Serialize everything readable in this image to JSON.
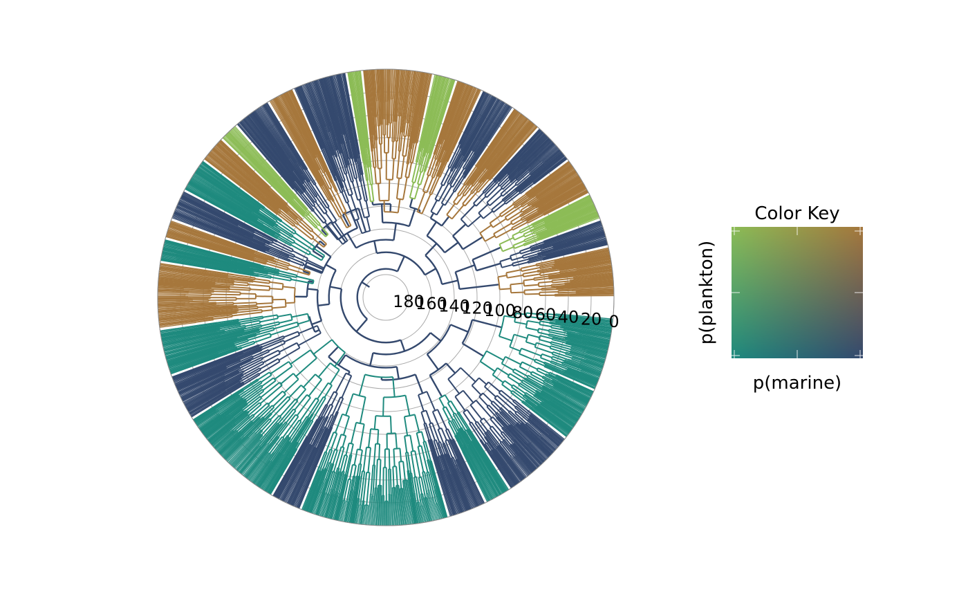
{
  "chart_data": {
    "type": "circular-phylogeny",
    "title": "",
    "radial_axis": {
      "ticks": [
        180,
        160,
        140,
        120,
        100,
        80,
        60,
        40,
        20,
        0
      ],
      "range": [
        0,
        183
      ],
      "grid": true
    },
    "color_key": {
      "title": "Color Key",
      "xlabel": "p(marine)",
      "ylabel": "p(plankton)",
      "corner_colors": {
        "low_marine_low_plankton": "#1e8a7e",
        "high_marine_low_plankton": "#34496e",
        "low_marine_high_plankton": "#8cbc56",
        "high_marine_high_plankton": "#a6773c"
      }
    },
    "clades": [
      {
        "start_deg": 0,
        "end_deg": 13,
        "color": "#a6773c",
        "depth_age": 100
      },
      {
        "start_deg": 13,
        "end_deg": 20,
        "color": "#34496e",
        "depth_age": 95
      },
      {
        "start_deg": 20,
        "end_deg": 27,
        "color": "#8cbc56",
        "depth_age": 90
      },
      {
        "start_deg": 27,
        "end_deg": 37,
        "color": "#a6773c",
        "depth_age": 100
      },
      {
        "start_deg": 37,
        "end_deg": 48,
        "color": "#34496e",
        "depth_age": 105
      },
      {
        "start_deg": 48,
        "end_deg": 56,
        "color": "#a6773c",
        "depth_age": 110
      },
      {
        "start_deg": 56,
        "end_deg": 65,
        "color": "#34496e",
        "depth_age": 115
      },
      {
        "start_deg": 65,
        "end_deg": 72,
        "color": "#a6773c",
        "depth_age": 120
      },
      {
        "start_deg": 72,
        "end_deg": 78,
        "color": "#8cbc56",
        "depth_age": 110
      },
      {
        "start_deg": 78,
        "end_deg": 96,
        "color": "#a6773c",
        "depth_age": 125
      },
      {
        "start_deg": 96,
        "end_deg": 100,
        "color": "#8cbc56",
        "depth_age": 115
      },
      {
        "start_deg": 100,
        "end_deg": 114,
        "color": "#34496e",
        "depth_age": 140
      },
      {
        "start_deg": 114,
        "end_deg": 121,
        "color": "#a6773c",
        "depth_age": 130
      },
      {
        "start_deg": 121,
        "end_deg": 131,
        "color": "#34496e",
        "depth_age": 140
      },
      {
        "start_deg": 131,
        "end_deg": 136,
        "color": "#8cbc56",
        "depth_age": 125
      },
      {
        "start_deg": 136,
        "end_deg": 143,
        "color": "#a6773c",
        "depth_age": 130
      },
      {
        "start_deg": 143,
        "end_deg": 152,
        "color": "#1e8a7e",
        "depth_age": 135
      },
      {
        "start_deg": 152,
        "end_deg": 160,
        "color": "#34496e",
        "depth_age": 140
      },
      {
        "start_deg": 160,
        "end_deg": 165,
        "color": "#a6773c",
        "depth_age": 130
      },
      {
        "start_deg": 165,
        "end_deg": 171,
        "color": "#1e8a7e",
        "depth_age": 135
      },
      {
        "start_deg": 171,
        "end_deg": 188,
        "color": "#a6773c",
        "depth_age": 120
      },
      {
        "start_deg": 188,
        "end_deg": 200,
        "color": "#1e8a7e",
        "depth_age": 130
      },
      {
        "start_deg": 200,
        "end_deg": 212,
        "color": "#34496e",
        "depth_age": 135
      },
      {
        "start_deg": 212,
        "end_deg": 240,
        "color": "#1e8a7e",
        "depth_age": 140
      },
      {
        "start_deg": 240,
        "end_deg": 248,
        "color": "#34496e",
        "depth_age": 125
      },
      {
        "start_deg": 248,
        "end_deg": 286,
        "color": "#1e8a7e",
        "depth_age": 130
      },
      {
        "start_deg": 286,
        "end_deg": 296,
        "color": "#34496e",
        "depth_age": 110
      },
      {
        "start_deg": 296,
        "end_deg": 303,
        "color": "#1e8a7e",
        "depth_age": 100
      },
      {
        "start_deg": 303,
        "end_deg": 322,
        "color": "#34496e",
        "depth_age": 110
      },
      {
        "start_deg": 322,
        "end_deg": 336,
        "color": "#1e8a7e",
        "depth_age": 100
      },
      {
        "start_deg": 336,
        "end_deg": 355,
        "color": "#1e8a7e",
        "depth_age": 95
      }
    ]
  }
}
